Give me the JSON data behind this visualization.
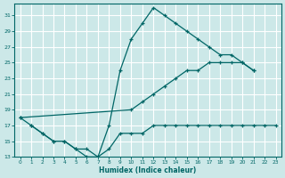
{
  "bg_color": "#cce8e8",
  "grid_color": "#ffffff",
  "line_color": "#006666",
  "xlabel": "Humidex (Indice chaleur)",
  "xlim": [
    -0.5,
    23.5
  ],
  "ylim": [
    13,
    32.5
  ],
  "xticks": [
    0,
    1,
    2,
    3,
    4,
    5,
    6,
    7,
    8,
    9,
    10,
    11,
    12,
    13,
    14,
    15,
    16,
    17,
    18,
    19,
    20,
    21,
    22,
    23
  ],
  "yticks": [
    13,
    15,
    17,
    19,
    21,
    23,
    25,
    27,
    29,
    31
  ],
  "curve1_x": [
    0,
    1,
    2,
    3,
    4,
    5,
    6,
    7,
    8,
    9,
    10,
    11,
    12,
    13,
    14,
    15,
    16,
    17,
    18,
    19,
    20,
    21
  ],
  "curve1_y": [
    18,
    17,
    16,
    15,
    15,
    14,
    13,
    13,
    17,
    24,
    28,
    30,
    32,
    31,
    30,
    29,
    28,
    27,
    26,
    26,
    25,
    24
  ],
  "curve2_x": [
    0,
    10,
    11,
    12,
    13,
    14,
    15,
    16,
    17,
    18,
    19,
    20,
    21
  ],
  "curve2_y": [
    18,
    19,
    20,
    21,
    22,
    23,
    24,
    24,
    25,
    25,
    25,
    25,
    24
  ],
  "curve3_x": [
    1,
    2,
    3,
    4,
    5,
    6,
    7,
    8,
    9,
    10,
    11,
    12,
    13,
    14,
    15,
    16,
    17,
    18,
    19,
    20,
    21,
    22,
    23
  ],
  "curve3_y": [
    17,
    16,
    15,
    15,
    14,
    14,
    13,
    14,
    16,
    16,
    16,
    17,
    17,
    17,
    17,
    17,
    17,
    17,
    17,
    17,
    17,
    17,
    17
  ]
}
